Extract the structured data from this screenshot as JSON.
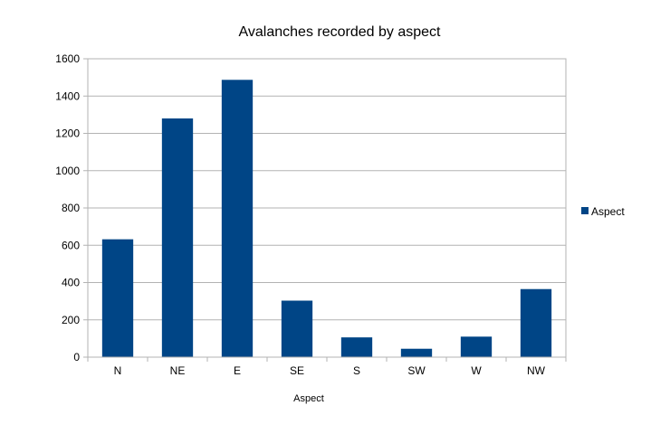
{
  "chart_data": {
    "type": "bar",
    "title": "Avalanches recorded by aspect",
    "xlabel": "Aspect",
    "ylabel": "",
    "categories": [
      "N",
      "NE",
      "E",
      "SE",
      "S",
      "SW",
      "W",
      "NW"
    ],
    "series": [
      {
        "name": "Aspect",
        "values": [
          632,
          1280,
          1487,
          303,
          106,
          45,
          110,
          365
        ],
        "color": "#004586"
      }
    ],
    "ylim": [
      0,
      1600
    ],
    "yticks": [
      "0",
      "200",
      "400",
      "600",
      "800",
      "1000",
      "1200",
      "1400",
      "1600"
    ],
    "grid": true,
    "legend": "right"
  }
}
